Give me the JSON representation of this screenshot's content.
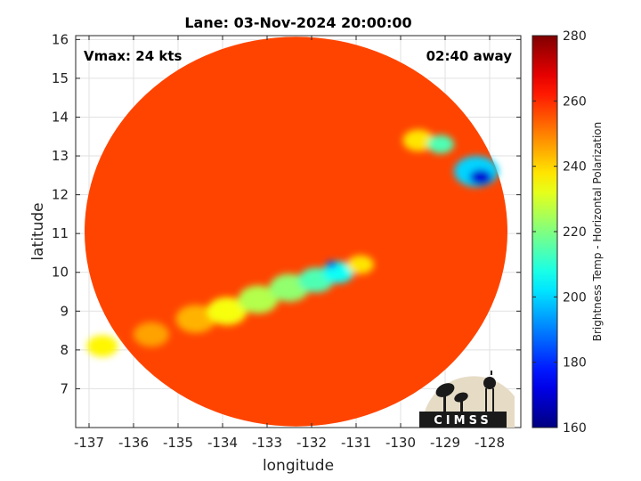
{
  "chart_data": {
    "type": "heatmap",
    "title": "Lane: 03-Nov-2024 20:00:00",
    "xlabel": "longitude",
    "ylabel": "latitude",
    "xlim": [
      -137.3,
      -127.3
    ],
    "ylim": [
      6.0,
      16.1
    ],
    "xticks": [
      -137,
      -136,
      -135,
      -134,
      -133,
      -132,
      -131,
      -130,
      -129,
      -128
    ],
    "yticks": [
      7,
      8,
      9,
      10,
      11,
      12,
      13,
      14,
      15,
      16
    ],
    "grid": true,
    "annotations": {
      "vmax": "Vmax: 24 kts",
      "time_away": "02:40 away"
    },
    "colorbar": {
      "label": "Brightness Temp - Horizontal Polarization",
      "range": [
        160,
        280
      ],
      "ticks": [
        160,
        180,
        200,
        220,
        240,
        260,
        280
      ],
      "colormap": "jet"
    },
    "swath": {
      "center_lon": -132.35,
      "center_lat": 11.05,
      "radius_lon": 4.75,
      "radius_lat": 5.02,
      "background_temp": 257
    },
    "features": [
      {
        "name": "band-west",
        "lon": -136.7,
        "lat": 8.1,
        "temp": 236,
        "r": 0.35
      },
      {
        "name": "band-1",
        "lon": -135.6,
        "lat": 8.4,
        "temp": 246,
        "r": 0.4
      },
      {
        "name": "band-2",
        "lon": -134.6,
        "lat": 8.8,
        "temp": 244,
        "r": 0.45
      },
      {
        "name": "band-3",
        "lon": -133.9,
        "lat": 9.0,
        "temp": 234,
        "r": 0.45
      },
      {
        "name": "band-4",
        "lon": -133.2,
        "lat": 9.3,
        "temp": 226,
        "r": 0.45
      },
      {
        "name": "band-5",
        "lon": -132.5,
        "lat": 9.6,
        "temp": 222,
        "r": 0.45
      },
      {
        "name": "band-6",
        "lon": -131.9,
        "lat": 9.8,
        "temp": 214,
        "r": 0.4
      },
      {
        "name": "band-7",
        "lon": -131.4,
        "lat": 10.0,
        "temp": 206,
        "r": 0.35
      },
      {
        "name": "band-core",
        "lon": -131.55,
        "lat": 10.2,
        "temp": 186,
        "r": 0.12
      },
      {
        "name": "band-east",
        "lon": -130.9,
        "lat": 10.2,
        "temp": 238,
        "r": 0.3
      },
      {
        "name": "ne-cluster-1",
        "lon": -129.6,
        "lat": 13.4,
        "temp": 238,
        "r": 0.35
      },
      {
        "name": "ne-cluster-2",
        "lon": -129.1,
        "lat": 13.3,
        "temp": 214,
        "r": 0.3
      },
      {
        "name": "ne-core-outer",
        "lon": -128.3,
        "lat": 12.6,
        "temp": 200,
        "r": 0.5
      },
      {
        "name": "ne-core-inner",
        "lon": -128.2,
        "lat": 12.45,
        "temp": 170,
        "r": 0.25
      }
    ]
  }
}
